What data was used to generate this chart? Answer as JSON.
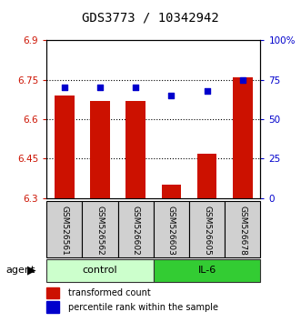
{
  "title": "GDS3773 / 10342942",
  "samples": [
    "GSM526561",
    "GSM526562",
    "GSM526602",
    "GSM526603",
    "GSM526605",
    "GSM526678"
  ],
  "bar_values": [
    6.69,
    6.67,
    6.67,
    6.35,
    6.47,
    6.76
  ],
  "dot_values": [
    70,
    70,
    70,
    65,
    68,
    75
  ],
  "ylim_left": [
    6.3,
    6.9
  ],
  "ylim_right": [
    0,
    100
  ],
  "yticks_left": [
    6.3,
    6.45,
    6.6,
    6.75,
    6.9
  ],
  "yticks_right": [
    0,
    25,
    50,
    75,
    100
  ],
  "ytick_labels_left": [
    "6.3",
    "6.45",
    "6.6",
    "6.75",
    "6.9"
  ],
  "ytick_labels_right": [
    "0",
    "25",
    "50",
    "75",
    "100%"
  ],
  "bar_color": "#cc1100",
  "dot_color": "#0000cc",
  "bar_bottom": 6.3,
  "groups": [
    {
      "label": "control",
      "indices": [
        0,
        1,
        2
      ],
      "color": "#ccffcc"
    },
    {
      "label": "IL-6",
      "indices": [
        3,
        4,
        5
      ],
      "color": "#33cc33"
    }
  ],
  "agent_label": "agent",
  "legend_bar_label": "transformed count",
  "legend_dot_label": "percentile rank within the sample",
  "grid_yticks": [
    6.45,
    6.6,
    6.75
  ],
  "title_fontsize": 10,
  "tick_label_fontsize": 7.5,
  "sample_fontsize": 6.5,
  "group_fontsize": 8
}
